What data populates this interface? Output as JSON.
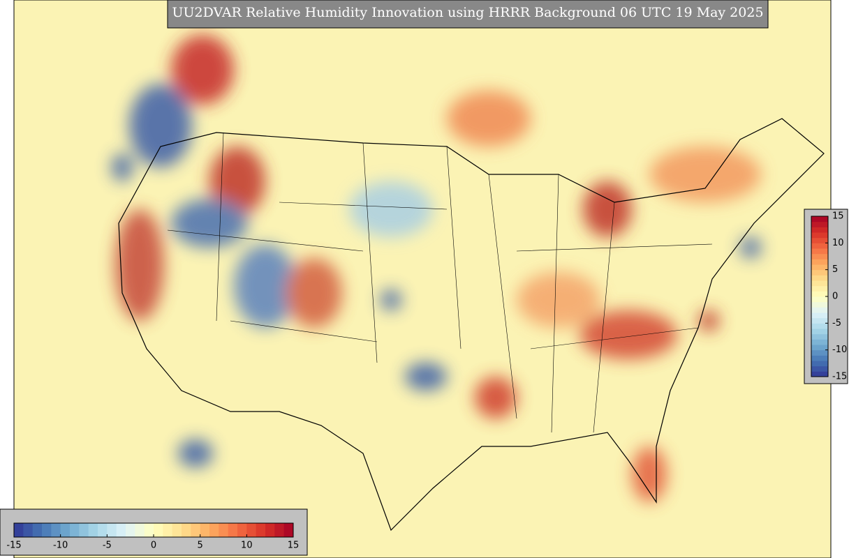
{
  "title": "UU2DVAR Relative Humidity Innovation using HRRR Background 06 UTC 19 May 2025",
  "colormap": [
    "#313695",
    "#4575b4",
    "#74add1",
    "#abd9e9",
    "#e0f3f8",
    "#ffffbf",
    "#fee090",
    "#fdae61",
    "#f46d43",
    "#d73027",
    "#a50026"
  ],
  "colorbars": [
    {
      "orientation": "horizontal",
      "lim": [
        -15,
        15
      ],
      "ticks": [
        -15,
        -10,
        -5,
        0,
        5,
        10,
        15
      ]
    },
    {
      "orientation": "vertical",
      "lim": [
        -15,
        15
      ],
      "ticks": [
        -15,
        -10,
        -5,
        0,
        5,
        10,
        15
      ]
    }
  ]
}
